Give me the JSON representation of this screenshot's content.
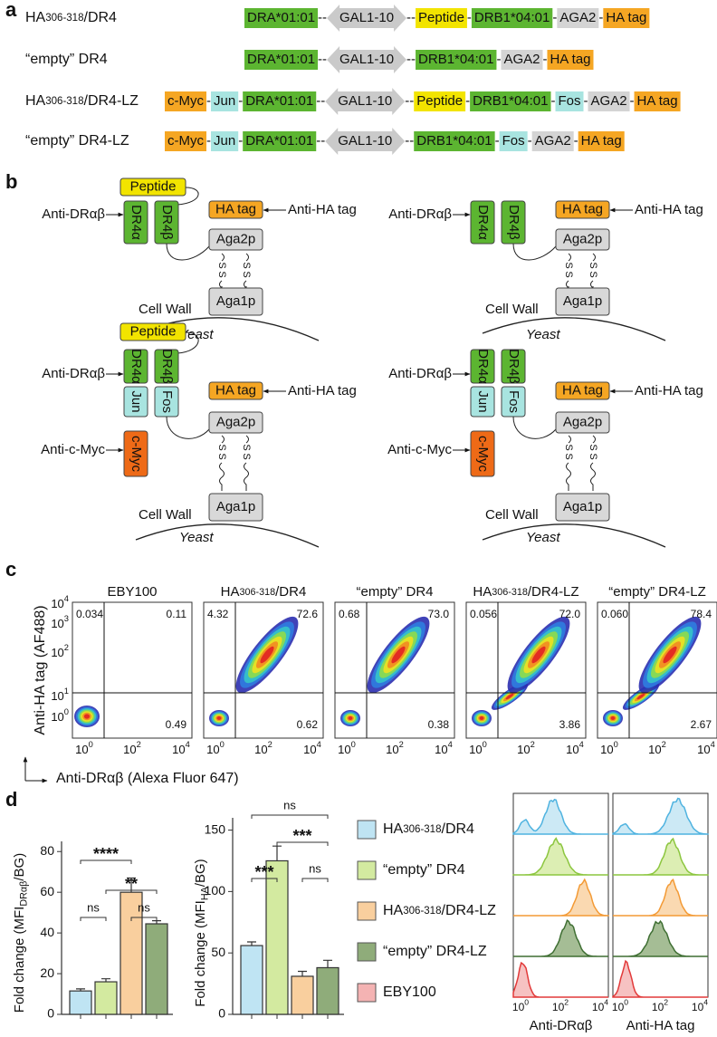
{
  "panel_a": {
    "letter": "a",
    "rows": [
      {
        "label": [
          {
            "t": "HA"
          },
          {
            "t": "306-318",
            "small": true
          },
          {
            "t": "/DR4"
          }
        ],
        "parts": [
          {
            "t": "DRA*01:01",
            "c": "#5cb531"
          },
          {
            "t": "--"
          },
          {
            "t": "GAL1-10",
            "shape": "arrow",
            "c": "#cacaca"
          },
          {
            "t": "--"
          },
          {
            "t": "Peptide",
            "c": "#f2e400"
          },
          {
            "t": "-"
          },
          {
            "t": "DRB1*04:01",
            "c": "#5cb531"
          },
          {
            "t": "-"
          },
          {
            "t": "AGA2",
            "c": "#d4d4d4"
          },
          {
            "t": "-"
          },
          {
            "t": "HA tag",
            "c": "#f5a623"
          }
        ]
      },
      {
        "label": "“empty” DR4",
        "parts": [
          {
            "t": "DRA*01:01",
            "c": "#5cb531"
          },
          {
            "t": "--"
          },
          {
            "t": "GAL1-10",
            "shape": "arrow",
            "c": "#cacaca"
          },
          {
            "t": "--"
          },
          {
            "t": "DRB1*04:01",
            "c": "#5cb531"
          },
          {
            "t": "-"
          },
          {
            "t": "AGA2",
            "c": "#d4d4d4"
          },
          {
            "t": "-"
          },
          {
            "t": "HA tag",
            "c": "#f5a623"
          }
        ]
      },
      {
        "label": [
          {
            "t": "HA"
          },
          {
            "t": "306-318",
            "small": true
          },
          {
            "t": "/DR4-LZ"
          }
        ],
        "parts": [
          {
            "t": "c-Myc",
            "c": "#f5a623"
          },
          {
            "t": "-"
          },
          {
            "t": "Jun",
            "c": "#a8e4e0"
          },
          {
            "t": "-"
          },
          {
            "t": "DRA*01:01",
            "c": "#5cb531"
          },
          {
            "t": "--"
          },
          {
            "t": "GAL1-10",
            "shape": "arrow",
            "c": "#cacaca"
          },
          {
            "t": "--"
          },
          {
            "t": "Peptide",
            "c": "#f2e400"
          },
          {
            "t": "-"
          },
          {
            "t": "DRB1*04:01",
            "c": "#5cb531"
          },
          {
            "t": "-"
          },
          {
            "t": "Fos",
            "c": "#a8e4e0"
          },
          {
            "t": "-"
          },
          {
            "t": "AGA2",
            "c": "#d4d4d4"
          },
          {
            "t": "-"
          },
          {
            "t": "HA tag",
            "c": "#f5a623"
          }
        ]
      },
      {
        "label": "“empty” DR4-LZ",
        "parts": [
          {
            "t": "c-Myc",
            "c": "#f5a623"
          },
          {
            "t": "-"
          },
          {
            "t": "Jun",
            "c": "#a8e4e0"
          },
          {
            "t": "-"
          },
          {
            "t": "DRA*01:01",
            "c": "#5cb531"
          },
          {
            "t": "--"
          },
          {
            "t": "GAL1-10",
            "shape": "arrow",
            "c": "#cacaca"
          },
          {
            "t": "--"
          },
          {
            "t": "DRB1*04:01",
            "c": "#5cb531"
          },
          {
            "t": "-"
          },
          {
            "t": "Fos",
            "c": "#a8e4e0"
          },
          {
            "t": "-"
          },
          {
            "t": "AGA2",
            "c": "#d4d4d4"
          },
          {
            "t": "-"
          },
          {
            "t": "HA tag",
            "c": "#f5a623"
          }
        ]
      }
    ]
  },
  "panel_b": {
    "letter": "b",
    "diagrams": [
      {
        "peptide": "Peptide",
        "alpha": "DR4α",
        "beta": "DR4β",
        "ha": "HA tag",
        "anti_ha": "Anti-HA tag",
        "anti_dr": "Anti-DRαβ",
        "aga2": "Aga2p",
        "aga1": "Aga1p",
        "ss": "S",
        "cell_wall": "Cell Wall",
        "yeast": "Yeast"
      },
      {
        "alpha": "DR4α",
        "beta": "DR4β",
        "ha": "HA tag",
        "anti_ha": "Anti-HA tag",
        "anti_dr": "Anti-DRαβ",
        "aga2": "Aga2p",
        "aga1": "Aga1p",
        "ss": "S",
        "cell_wall": "Cell Wall",
        "yeast": "Yeast"
      },
      {
        "peptide": "Peptide",
        "alpha": "DR4α",
        "beta": "DR4β",
        "jun": "Jun",
        "fos": "Fos",
        "myc": "c-Myc",
        "anti_myc": "Anti-c-Myc",
        "ha": "HA tag",
        "anti_ha": "Anti-HA tag",
        "anti_dr": "Anti-DRαβ",
        "aga2": "Aga2p",
        "aga1": "Aga1p",
        "ss": "S",
        "cell_wall": "Cell Wall",
        "yeast": "Yeast"
      },
      {
        "alpha": "DR4α",
        "beta": "DR4β",
        "jun": "Jun",
        "fos": "Fos",
        "myc": "c-Myc",
        "anti_myc": "Anti-c-Myc",
        "ha": "HA tag",
        "anti_ha": "Anti-HA tag",
        "anti_dr": "Anti-DRαβ",
        "aga2": "Aga2p",
        "aga1": "Aga1p",
        "ss": "S",
        "cell_wall": "Cell Wall",
        "yeast": "Yeast"
      }
    ]
  },
  "panel_c": {
    "letter": "c",
    "y_label": "Anti-HA tag (AF488)",
    "x_label": "Anti-DRαβ (Alexa Fluor 647)",
    "xticks": [
      [
        {
          "t": "10"
        },
        {
          "t": "0",
          "sup": true
        }
      ],
      [
        {
          "t": "10"
        },
        {
          "t": "2",
          "sup": true
        }
      ],
      [
        {
          "t": "10"
        },
        {
          "t": "4",
          "sup": true
        }
      ]
    ],
    "yticks": [
      [
        {
          "t": "10"
        },
        {
          "t": "0",
          "sup": true
        }
      ],
      [
        {
          "t": "10"
        },
        {
          "t": "1",
          "sup": true
        }
      ],
      [
        {
          "t": "10"
        },
        {
          "t": "2",
          "sup": true
        }
      ],
      [
        {
          "t": "10"
        },
        {
          "t": "3",
          "sup": true
        }
      ],
      [
        {
          "t": "10"
        },
        {
          "t": "4",
          "sup": true
        }
      ]
    ],
    "plots": [
      {
        "title": "EBY100",
        "quadrants": [
          "0.034",
          "0.11",
          "0.49"
        ]
      },
      {
        "title": [
          {
            "t": "HA"
          },
          {
            "t": "306-318",
            "small": true
          },
          {
            "t": "/DR4"
          }
        ],
        "quadrants": [
          "4.32",
          "72.6",
          "0.62"
        ]
      },
      {
        "title": "“empty” DR4",
        "quadrants": [
          "0.68",
          "73.0",
          "0.38"
        ]
      },
      {
        "title": [
          {
            "t": "HA"
          },
          {
            "t": "306-318",
            "small": true
          },
          {
            "t": "/DR4-LZ"
          }
        ],
        "quadrants": [
          "0.056",
          "72.0",
          "3.86"
        ]
      },
      {
        "title": "“empty” DR4-LZ",
        "quadrants": [
          "0.060",
          "78.4",
          "2.67"
        ]
      }
    ]
  },
  "panel_d": {
    "letter": "d",
    "legend": {
      "labels": [
        [
          {
            "t": "HA"
          },
          {
            "t": "306-318",
            "small": true
          },
          {
            "t": "/DR4"
          }
        ],
        "“empty” DR4",
        [
          {
            "t": "HA"
          },
          {
            "t": "306-318",
            "small": true
          },
          {
            "t": "/DR4-LZ"
          }
        ],
        "“empty” DR4-LZ",
        "EBY100"
      ],
      "colors": [
        "#bfe4f3",
        "#d3eaa0",
        "#f9cf9e",
        "#8fac7a",
        "#f4b3b3"
      ]
    },
    "histograms": {
      "x_labels": [
        "Anti-DRαβ",
        "Anti-HA tag"
      ],
      "xticks": [
        [
          {
            "t": "10"
          },
          {
            "t": "0",
            "sup": true
          }
        ],
        [
          {
            "t": "10"
          },
          {
            "t": "2",
            "sup": true
          }
        ],
        [
          {
            "t": "10"
          },
          {
            "t": "4",
            "sup": true
          }
        ]
      ],
      "colors": [
        "#4fb3e0",
        "#8cc63f",
        "#f39a35",
        "#3e6e32",
        "#e23a3a"
      ]
    }
  },
  "chart_data": [
    {
      "type": "bar",
      "y_label": [
        {
          "t": "Fold change (MFI"
        },
        {
          "t": "DRαβ",
          "sub": true
        },
        {
          "t": "/BG)"
        }
      ],
      "categories": [
        null,
        null,
        null,
        null
      ],
      "values": [
        11.5,
        16,
        60,
        44.5
      ],
      "errors": [
        1,
        1.5,
        7,
        1.5
      ],
      "colors": [
        "#bfe4f3",
        "#d3eaa0",
        "#f9cf9e",
        "#8fac7a"
      ],
      "ylim": [
        0,
        85
      ],
      "yticks": [
        0,
        20,
        40,
        60,
        80
      ],
      "annotations": [
        "****",
        "**",
        "ns",
        "ns"
      ]
    },
    {
      "type": "bar",
      "y_label": [
        {
          "t": "Fold change (MFI"
        },
        {
          "t": "HA",
          "sub": true
        },
        {
          "t": "/BG)"
        }
      ],
      "categories": [
        null,
        null,
        null,
        null
      ],
      "values": [
        56,
        125,
        31,
        38
      ],
      "errors": [
        3,
        12,
        4,
        6
      ],
      "colors": [
        "#bfe4f3",
        "#d3eaa0",
        "#f9cf9e",
        "#8fac7a"
      ],
      "ylim": [
        0,
        160
      ],
      "yticks": [
        0,
        50,
        100,
        150
      ],
      "annotations": [
        "ns",
        "***",
        "***",
        "ns"
      ]
    }
  ]
}
